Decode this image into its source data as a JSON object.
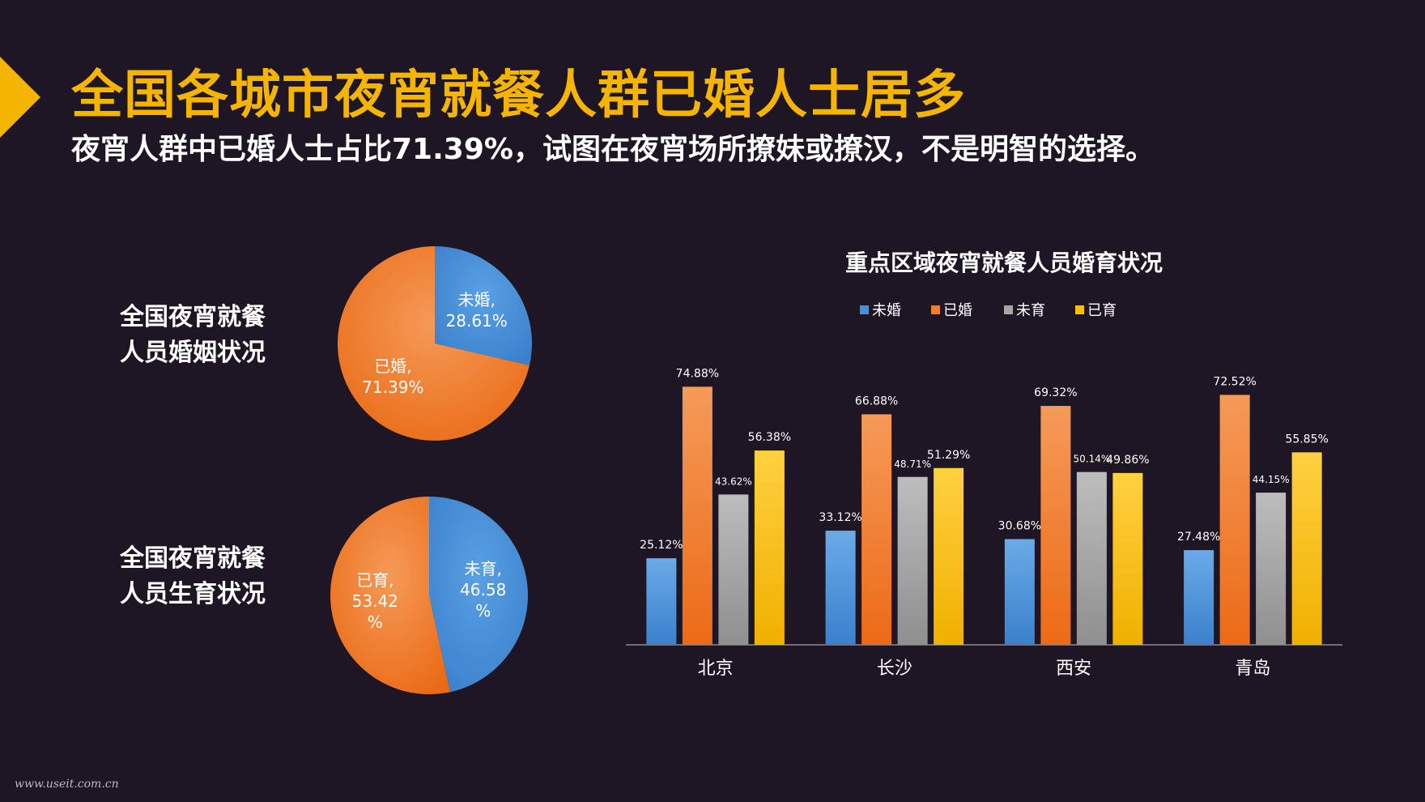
{
  "header": {
    "title": "全国各城市夜宵就餐人群已婚人士居多",
    "subtitle": "夜宵人群中已婚人士占比71.39%，试图在夜宵场所撩妹或撩汉，不是明智的选择。"
  },
  "pies": {
    "marriage_label": [
      "全国夜宵就餐",
      "人员婚姻状况"
    ],
    "fertility_label": [
      "全国夜宵就餐",
      "人员生育状况"
    ]
  },
  "footer": "www.useit.com.cn",
  "colors": {
    "blue": "#4a90d9",
    "orange": "#f07d2a",
    "gray": "#a6a6a6",
    "yellow": "#ffc000",
    "title": "#f5b400"
  },
  "chart_data": [
    {
      "type": "pie",
      "labels": [
        "未婚",
        "已婚"
      ],
      "values": [
        28.61,
        71.39
      ],
      "slice_text": [
        [
          "未婚,",
          "28.61%"
        ],
        [
          "已婚,",
          "71.39%"
        ]
      ]
    },
    {
      "type": "pie",
      "labels": [
        "未育",
        "已育"
      ],
      "values": [
        46.58,
        53.42
      ],
      "slice_text": [
        [
          "未育,",
          "46.58",
          "%"
        ],
        [
          "已育,",
          "53.42",
          "%"
        ]
      ]
    },
    {
      "type": "bar",
      "title": "重点区域夜宵就餐人员婚育状况",
      "categories": [
        "北京",
        "长沙",
        "西安",
        "青岛"
      ],
      "series": [
        {
          "name": "未婚",
          "values": [
            25.12,
            33.12,
            30.68,
            27.48
          ],
          "labels": [
            "25.12%",
            "33.12%",
            "30.68%",
            "27.48%"
          ]
        },
        {
          "name": "已婚",
          "values": [
            74.88,
            66.88,
            69.32,
            72.52
          ],
          "labels": [
            "74.88%",
            "66.88%",
            "69.32%",
            "72.52%"
          ]
        },
        {
          "name": "未育",
          "values": [
            43.62,
            48.71,
            50.14,
            44.15
          ],
          "labels": [
            "43.62%",
            "48.71%",
            "50.14%",
            "44.15%"
          ]
        },
        {
          "name": "已育",
          "values": [
            56.38,
            51.29,
            49.86,
            55.85
          ],
          "labels": [
            "56.38%",
            "51.29%",
            "49.86%",
            "55.85%"
          ]
        }
      ],
      "legend": "top-center",
      "ylim": [
        0,
        80
      ],
      "grid": false
    }
  ]
}
